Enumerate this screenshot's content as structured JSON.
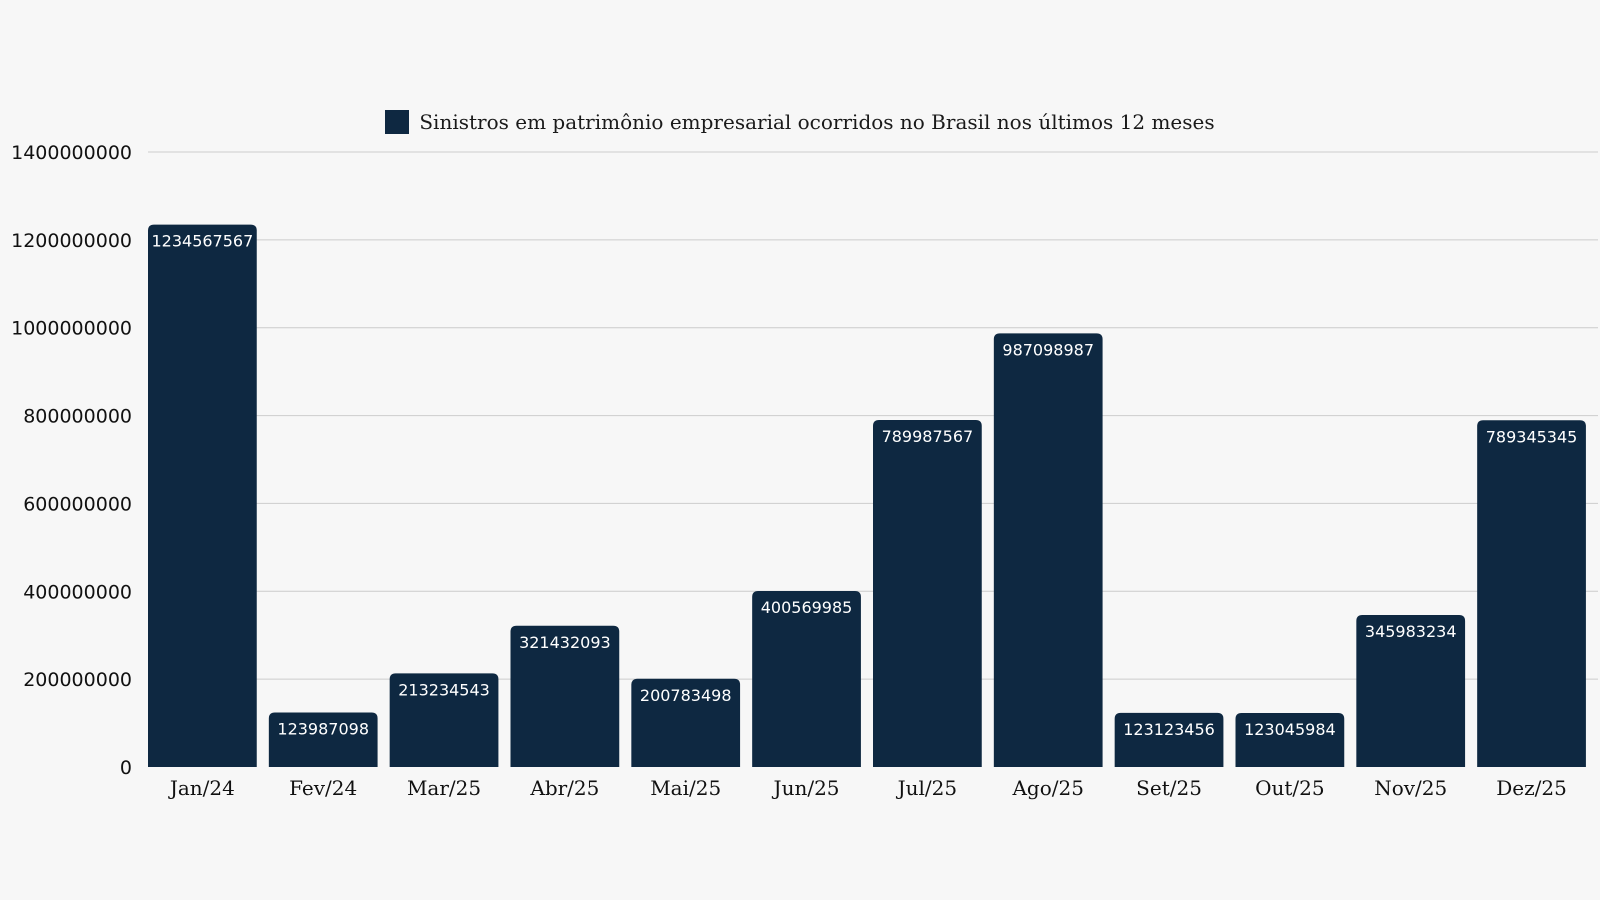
{
  "chart_data": {
    "type": "bar",
    "categories": [
      "Jan/24",
      "Fev/24",
      "Mar/25",
      "Abr/25",
      "Mai/25",
      "Jun/25",
      "Jul/25",
      "Ago/25",
      "Set/25",
      "Out/25",
      "Nov/25",
      "Dez/25"
    ],
    "series": [
      {
        "name": "Sinistros em patrimônio empresarial ocorridos no Brasil nos últimos 12 meses",
        "values": [
          1234567567,
          123987098,
          213234543,
          321432093,
          200783498,
          400569985,
          789987567,
          987098987,
          123123456,
          123045984,
          345983234,
          789345345
        ],
        "color": "#0e2841"
      }
    ],
    "data_labels": [
      "1234567567",
      "123987098",
      "213234543",
      "321432093",
      "200783498",
      "400569985",
      "789987567",
      "987098987",
      "123123456",
      "123045984",
      "345983234",
      "789345345"
    ],
    "y_ticks": [
      "0",
      "200000000",
      "400000000",
      "600000000",
      "800000000",
      "1000000000",
      "1200000000",
      "1400000000"
    ],
    "ylim": [
      0,
      1400000000
    ],
    "grid": true,
    "legend_position": "top-center",
    "background": "#f7f7f7"
  }
}
